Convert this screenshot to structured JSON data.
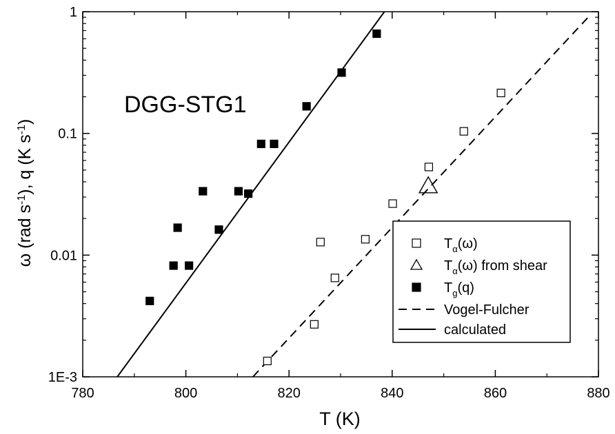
{
  "chart_data": {
    "type": "scatter",
    "annotation": "DGG-STG1",
    "xlabel": "T (K)",
    "ylabel": {
      "omega": "ω",
      "part1": " (rad s",
      "sup1": "-1",
      "part2": "), q (K s",
      "sup2": "-1",
      "part3": ")"
    },
    "xlim": [
      780,
      880
    ],
    "ylim": [
      0.001,
      1
    ],
    "y_scale": "log",
    "xticks": [
      780,
      800,
      820,
      840,
      860,
      880
    ],
    "yticks": [
      {
        "value": 0.001,
        "label": "1E-3"
      },
      {
        "value": 0.01,
        "label": "0.01"
      },
      {
        "value": 0.1,
        "label": "0.1"
      },
      {
        "value": 1,
        "label": "1"
      }
    ],
    "legend_position": "bottom-right",
    "series": [
      {
        "kind": "open-square",
        "legend": {
          "main": "T",
          "sub": "α",
          "tail": "(ω)"
        },
        "x": [
          815.8,
          824.9,
          826.1,
          828.9,
          834.8,
          840.1,
          847.1,
          853.9,
          861.1
        ],
        "y": [
          0.00135,
          0.0027,
          0.0128,
          0.0065,
          0.0135,
          0.0265,
          0.053,
          0.104,
          0.215
        ]
      },
      {
        "kind": "open-triangle",
        "legend": {
          "main": "T",
          "sub": "α",
          "tail": "(ω) from shear"
        },
        "x": [
          847.0
        ],
        "y": [
          0.037
        ]
      },
      {
        "kind": "filled-square",
        "legend": {
          "main": "T",
          "sub": "g",
          "tail": "(q)"
        },
        "x": [
          793.0,
          797.6,
          798.4,
          800.6,
          803.3,
          806.4,
          810.2,
          812.1,
          814.6,
          817.1,
          823.4,
          830.2,
          837.0
        ],
        "y": [
          0.0042,
          0.0082,
          0.0168,
          0.0082,
          0.0335,
          0.0162,
          0.0335,
          0.032,
          0.082,
          0.082,
          0.167,
          0.316,
          0.66
        ]
      },
      {
        "kind": "dashed-line",
        "legend": {
          "main": "Vogel-Fulcher",
          "sub": "",
          "tail": ""
        },
        "x": [
          813.0,
          878.0
        ],
        "y": [
          0.001,
          0.9
        ]
      },
      {
        "kind": "solid-line",
        "legend": {
          "main": "calculated",
          "sub": "",
          "tail": ""
        },
        "x": [
          786.7,
          838.5
        ],
        "y": [
          0.001,
          1.0
        ]
      }
    ]
  }
}
